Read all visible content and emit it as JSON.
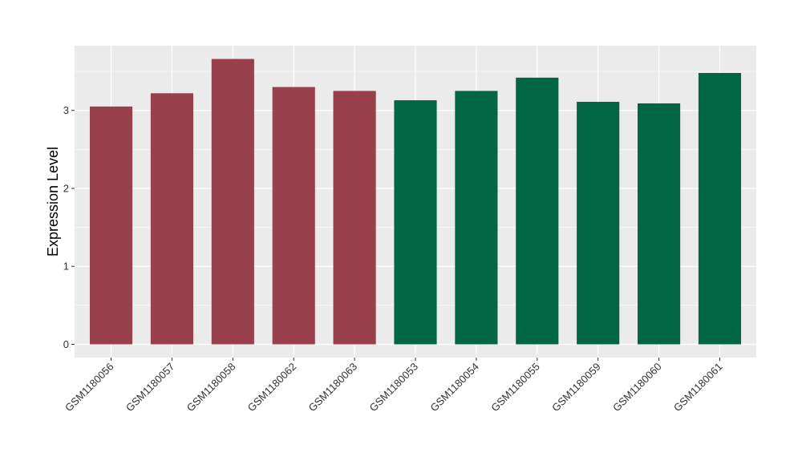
{
  "chart_data": {
    "type": "bar",
    "title": "",
    "xlabel": "",
    "ylabel": "Expression Level",
    "ylim": [
      -0.17,
      3.83
    ],
    "yticks": [
      0,
      1,
      2,
      3
    ],
    "grid": true,
    "legend": "none",
    "categories": [
      "GSM1180056",
      "GSM1180057",
      "GSM1180058",
      "GSM1180062",
      "GSM1180063",
      "GSM1180053",
      "GSM1180054",
      "GSM1180055",
      "GSM1180059",
      "GSM1180060",
      "GSM1180061"
    ],
    "values": [
      3.05,
      3.22,
      3.66,
      3.3,
      3.25,
      3.13,
      3.25,
      3.42,
      3.11,
      3.09,
      3.48
    ],
    "bar_colors": [
      "#99404f",
      "#99404f",
      "#99404f",
      "#99404f",
      "#99404f",
      "#006644",
      "#006644",
      "#006644",
      "#006644",
      "#006644",
      "#006644"
    ]
  },
  "colors": {
    "panel_background": "#ebebeb",
    "gridline": "#ffffff",
    "tick_text": "#333333"
  }
}
